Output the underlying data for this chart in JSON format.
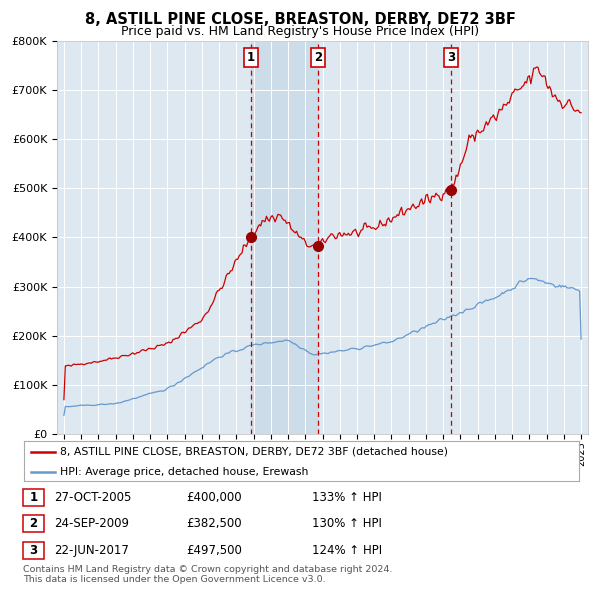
{
  "title": "8, ASTILL PINE CLOSE, BREASTON, DERBY, DE72 3BF",
  "subtitle": "Price paid vs. HM Land Registry's House Price Index (HPI)",
  "ylim": [
    0,
    800000
  ],
  "yticks": [
    0,
    100000,
    200000,
    300000,
    400000,
    500000,
    600000,
    700000,
    800000
  ],
  "ytick_labels": [
    "£0",
    "£100K",
    "£200K",
    "£300K",
    "£400K",
    "£500K",
    "£600K",
    "£700K",
    "£800K"
  ],
  "x_start_year": 1995,
  "x_end_year": 2025,
  "red_line_color": "#cc0000",
  "blue_line_color": "#6699cc",
  "background_color": "#ffffff",
  "plot_bg_color": "#dde8f0",
  "grid_color": "#ffffff",
  "purchase_prices": [
    400000,
    382500,
    497500
  ],
  "purchase_labels": [
    "1",
    "2",
    "3"
  ],
  "purchase_year_nums": [
    2005.826,
    2009.726,
    2017.472
  ],
  "vline_color": "#cc0000",
  "marker_color": "#990000",
  "shaded_region": [
    2005.826,
    2009.726
  ],
  "legend_red_label": "8, ASTILL PINE CLOSE, BREASTON, DERBY, DE72 3BF (detached house)",
  "legend_blue_label": "HPI: Average price, detached house, Erewash",
  "table_rows": [
    {
      "num": "1",
      "date": "27-OCT-2005",
      "price": "£400,000",
      "hpi": "133% ↑ HPI"
    },
    {
      "num": "2",
      "date": "24-SEP-2009",
      "price": "£382,500",
      "hpi": "130% ↑ HPI"
    },
    {
      "num": "3",
      "date": "22-JUN-2017",
      "price": "£497,500",
      "hpi": "124% ↑ HPI"
    }
  ],
  "footnote": "Contains HM Land Registry data © Crown copyright and database right 2024.\nThis data is licensed under the Open Government Licence v3.0."
}
